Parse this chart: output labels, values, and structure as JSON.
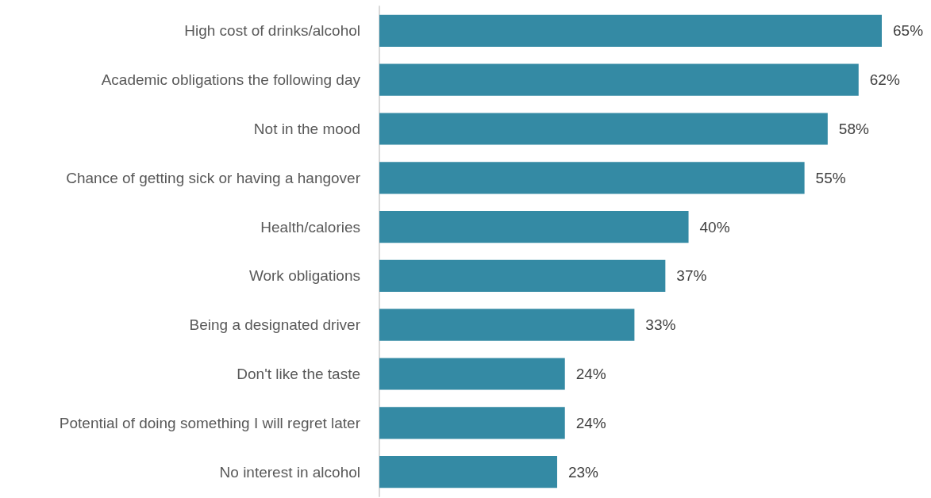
{
  "chart_data": {
    "type": "bar",
    "orientation": "horizontal",
    "categories": [
      "High cost of drinks/alcohol",
      "Academic obligations the following day",
      "Not in the mood",
      "Chance of getting sick or having a hangover",
      "Health/calories",
      "Work obligations",
      "Being a designated driver",
      "Don't like the taste",
      "Potential of doing something I will regret later",
      "No interest in alcohol"
    ],
    "values": [
      65,
      62,
      58,
      55,
      40,
      37,
      33,
      24,
      24,
      23
    ],
    "value_labels": [
      "65%",
      "62%",
      "58%",
      "55%",
      "40%",
      "37%",
      "33%",
      "24%",
      "24%",
      "23%"
    ],
    "color": "#348aa4"
  }
}
